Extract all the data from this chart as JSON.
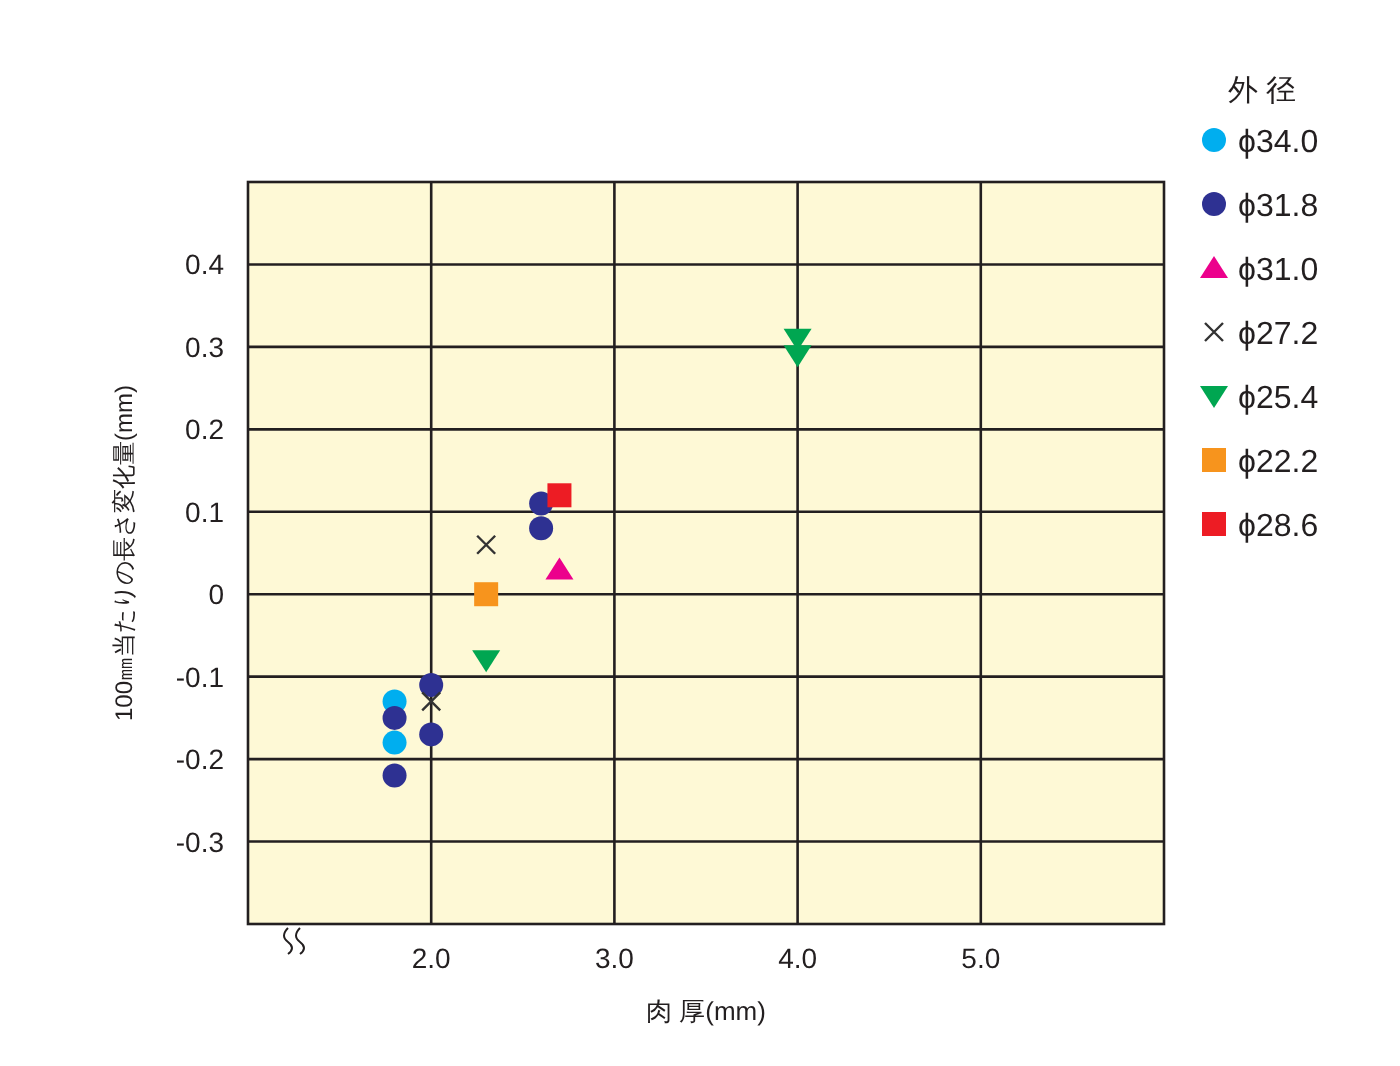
{
  "chart_data": {
    "type": "scatter",
    "xlabel": "肉 厚(mm)",
    "ylabel": "100㎜当たりの長さ変化量(mm)",
    "legend_title": "外 径",
    "legend": "top right",
    "grid": true,
    "xlim": [
      1,
      6
    ],
    "ylim": [
      -0.4,
      0.5
    ],
    "xticks": [
      {
        "value": 2,
        "label": "2.0"
      },
      {
        "value": 3,
        "label": "3.0"
      },
      {
        "value": 4,
        "label": "4.0"
      },
      {
        "value": 5,
        "label": "5.0"
      }
    ],
    "yticks": [
      {
        "value": -0.3,
        "label": "-0.3"
      },
      {
        "value": -0.2,
        "label": "-0.2"
      },
      {
        "value": -0.1,
        "label": "-0.1"
      },
      0,
      0.1,
      0.2,
      0.3,
      0.4
    ],
    "series": [
      {
        "name": "ϕ34.0",
        "color": "#00aeef",
        "marker": "circle",
        "x": [
          1.8,
          1.8
        ],
        "values": [
          -0.13,
          -0.18
        ]
      },
      {
        "name": "ϕ31.8",
        "color": "#2e3192",
        "marker": "circle",
        "x": [
          1.8,
          1.8,
          2.0,
          2.0,
          2.6,
          2.6
        ],
        "values": [
          -0.15,
          -0.22,
          -0.11,
          -0.17,
          0.11,
          0.08
        ]
      },
      {
        "name": "ϕ31.0",
        "color": "#ec008c",
        "marker": "triangle",
        "x": [
          2.7
        ],
        "values": [
          0.03
        ]
      },
      {
        "name": "ϕ27.2",
        "color": "#333333",
        "marker": "cross",
        "x": [
          2.3,
          2.0
        ],
        "values": [
          0.06,
          -0.13
        ]
      },
      {
        "name": "ϕ25.4",
        "color": "#00a651",
        "marker": "triangle-down",
        "x": [
          2.3,
          4.0,
          4.0
        ],
        "values": [
          -0.08,
          0.31,
          0.29
        ]
      },
      {
        "name": "ϕ22.2",
        "color": "#f7941d",
        "marker": "square",
        "x": [
          2.3
        ],
        "values": [
          0.0
        ]
      },
      {
        "name": "ϕ28.6",
        "color": "#ed1c24",
        "marker": "square",
        "x": [
          2.7
        ],
        "values": [
          0.12
        ]
      }
    ]
  }
}
